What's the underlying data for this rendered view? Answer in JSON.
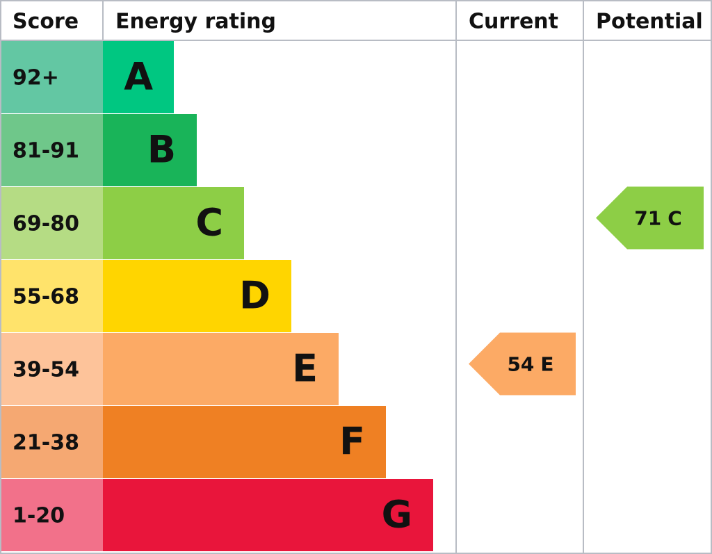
{
  "header": {
    "score": "Score",
    "rating": "Energy rating",
    "current": "Current",
    "potential": "Potential"
  },
  "bands": [
    {
      "range": "92+",
      "letter": "A"
    },
    {
      "range": "81-91",
      "letter": "B"
    },
    {
      "range": "69-80",
      "letter": "C"
    },
    {
      "range": "55-68",
      "letter": "D"
    },
    {
      "range": "39-54",
      "letter": "E"
    },
    {
      "range": "21-38",
      "letter": "F"
    },
    {
      "range": "1-20",
      "letter": "G"
    }
  ],
  "current": {
    "score": 54,
    "rating": "E"
  },
  "potential": {
    "score": 71,
    "rating": "C"
  }
}
